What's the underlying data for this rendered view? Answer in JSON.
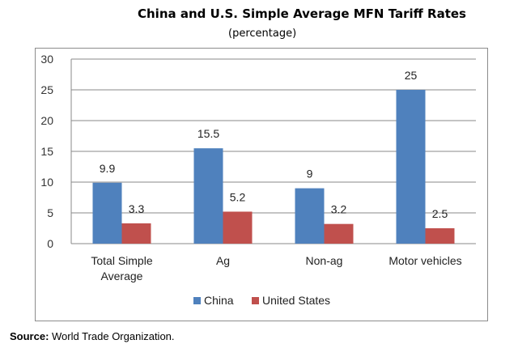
{
  "chart_data": {
    "type": "bar",
    "title": "China and U.S. Simple Average MFN Tariff Rates",
    "subtitle": "(percentage)",
    "categories": [
      "Total Simple Average",
      "Ag",
      "Non-ag",
      "Motor vehicles"
    ],
    "category_lines": [
      [
        "Total Simple",
        "Average"
      ],
      [
        "Ag"
      ],
      [
        "Non-ag"
      ],
      [
        "Motor vehicles"
      ]
    ],
    "series": [
      {
        "name": "China",
        "values": [
          9.9,
          15.5,
          9,
          25
        ],
        "labels": [
          "9.9",
          "15.5",
          "9",
          "25"
        ],
        "color": "#4f81bd"
      },
      {
        "name": "United States",
        "values": [
          3.3,
          5.2,
          3.2,
          2.5
        ],
        "labels": [
          "3.3",
          "5.2",
          "3.2",
          "2.5"
        ],
        "color": "#c0504d"
      }
    ],
    "yticks": [
      "0",
      "5",
      "10",
      "15",
      "20",
      "25",
      "30"
    ],
    "ylim": [
      0,
      30
    ],
    "xlabel": "",
    "ylabel": "",
    "grid": true,
    "legend": "bottom-center"
  },
  "source": {
    "label": "Source:",
    "text": " World Trade Organization."
  }
}
